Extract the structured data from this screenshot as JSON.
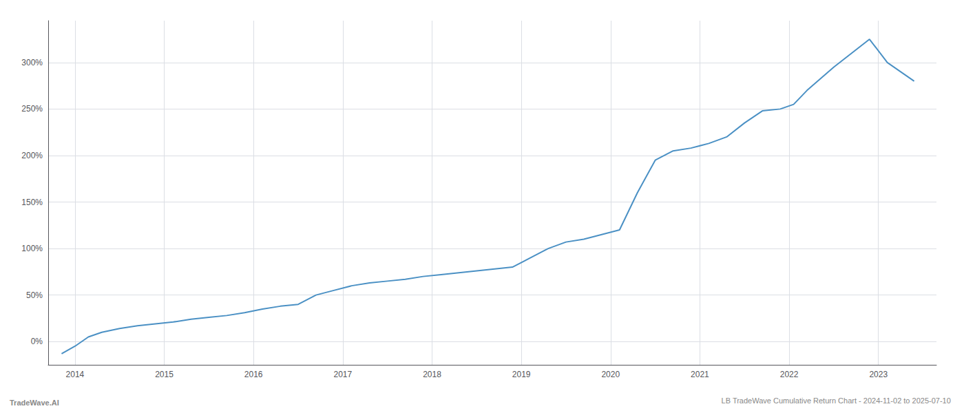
{
  "chart_data": {
    "type": "line",
    "title": "LB TradeWave Cumulative Return Chart - 2024-11-02 to 2025-07-10",
    "annotations": [
      "TradeWave.AI"
    ],
    "x": [
      2013.85,
      2014.0,
      2014.15,
      2014.3,
      2014.5,
      2014.7,
      2014.9,
      2015.1,
      2015.3,
      2015.5,
      2015.7,
      2015.9,
      2016.1,
      2016.3,
      2016.5,
      2016.7,
      2016.9,
      2017.1,
      2017.3,
      2017.5,
      2017.7,
      2017.9,
      2018.1,
      2018.3,
      2018.5,
      2018.7,
      2018.9,
      2019.1,
      2019.3,
      2019.5,
      2019.7,
      2019.9,
      2020.1,
      2020.3,
      2020.5,
      2020.7,
      2020.9,
      2021.1,
      2021.3,
      2021.5,
      2021.7,
      2021.9,
      2022.05,
      2022.2,
      2022.5,
      2022.7,
      2022.9,
      2023.1,
      2023.4
    ],
    "values": [
      -13,
      -5,
      5,
      10,
      14,
      17,
      19,
      21,
      24,
      26,
      28,
      31,
      35,
      38,
      40,
      50,
      55,
      60,
      63,
      65,
      67,
      70,
      72,
      74,
      76,
      78,
      80,
      90,
      100,
      107,
      110,
      115,
      120,
      160,
      195,
      205,
      208,
      213,
      220,
      235,
      248,
      250,
      255,
      270,
      295,
      310,
      325,
      300,
      280
    ],
    "color": "#4a90c4",
    "xlim": [
      2013.7,
      2023.65
    ],
    "xticks": [
      2014,
      2015,
      2016,
      2017,
      2018,
      2019,
      2020,
      2021,
      2022,
      2023
    ],
    "ylim": [
      -25,
      345
    ],
    "yticks": [
      {
        "value": 0,
        "label": "0%"
      },
      {
        "value": 50,
        "label": "50%"
      },
      {
        "value": 100,
        "label": "100%"
      },
      {
        "value": 150,
        "label": "150%"
      },
      {
        "value": 200,
        "label": "200%"
      },
      {
        "value": 250,
        "label": "250%"
      },
      {
        "value": 300,
        "label": "300%"
      }
    ],
    "grid": true
  }
}
